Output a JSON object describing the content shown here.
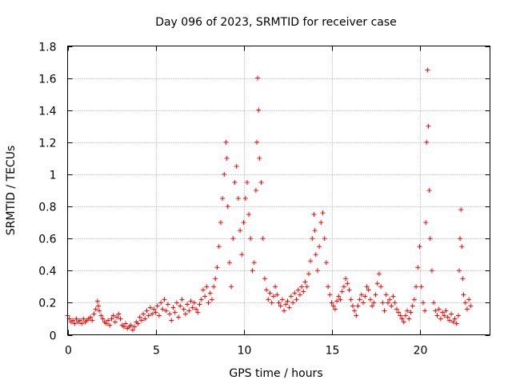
{
  "chart_data": {
    "type": "scatter",
    "title": "Day 096 of 2023, SRMTID for receiver case",
    "xlabel": "GPS time / hours",
    "ylabel": "SRMTID / TECUs",
    "xlim": [
      0,
      24
    ],
    "ylim": [
      0,
      1.8
    ],
    "xticks": [
      0,
      5,
      10,
      15,
      20
    ],
    "xtick_labels": [
      "0",
      "5",
      "10",
      "15",
      "20"
    ],
    "yticks": [
      0,
      0.2,
      0.4,
      0.6,
      0.8,
      1.0,
      1.2,
      1.4,
      1.6,
      1.8
    ],
    "ytick_labels": [
      "0",
      "0.2",
      "0.4",
      "0.6",
      "0.8",
      "1",
      "1.2",
      "1.4",
      "1.6",
      "1.8"
    ],
    "grid": true,
    "marker": "plus",
    "color": "#ff0000",
    "series": [
      {
        "name": "SRMTID",
        "points": [
          [
            0.0,
            0.12
          ],
          [
            0.1,
            0.1
          ],
          [
            0.2,
            0.08
          ],
          [
            0.3,
            0.09
          ],
          [
            0.4,
            0.07
          ],
          [
            0.5,
            0.1
          ],
          [
            0.6,
            0.08
          ],
          [
            0.7,
            0.09
          ],
          [
            0.8,
            0.07
          ],
          [
            0.9,
            0.1
          ],
          [
            1.0,
            0.08
          ],
          [
            1.1,
            0.09
          ],
          [
            1.2,
            0.1
          ],
          [
            1.3,
            0.11
          ],
          [
            1.4,
            0.09
          ],
          [
            1.5,
            0.13
          ],
          [
            1.6,
            0.16
          ],
          [
            1.7,
            0.21
          ],
          [
            1.75,
            0.18
          ],
          [
            1.8,
            0.15
          ],
          [
            1.9,
            0.12
          ],
          [
            2.0,
            0.1
          ],
          [
            2.1,
            0.08
          ],
          [
            2.2,
            0.07
          ],
          [
            2.3,
            0.09
          ],
          [
            2.4,
            0.06
          ],
          [
            2.5,
            0.1
          ],
          [
            2.6,
            0.12
          ],
          [
            2.7,
            0.08
          ],
          [
            2.8,
            0.11
          ],
          [
            2.9,
            0.13
          ],
          [
            3.0,
            0.1
          ],
          [
            3.1,
            0.06
          ],
          [
            3.2,
            0.05
          ],
          [
            3.3,
            0.07
          ],
          [
            3.4,
            0.04
          ],
          [
            3.5,
            0.05
          ],
          [
            3.6,
            0.06
          ],
          [
            3.7,
            0.03
          ],
          [
            3.8,
            0.05
          ],
          [
            3.9,
            0.08
          ],
          [
            4.0,
            0.07
          ],
          [
            4.1,
            0.11
          ],
          [
            4.2,
            0.09
          ],
          [
            4.3,
            0.13
          ],
          [
            4.4,
            0.1
          ],
          [
            4.5,
            0.15
          ],
          [
            4.6,
            0.12
          ],
          [
            4.7,
            0.17
          ],
          [
            4.8,
            0.13
          ],
          [
            4.9,
            0.16
          ],
          [
            5.0,
            0.14
          ],
          [
            5.1,
            0.18
          ],
          [
            5.2,
            0.12
          ],
          [
            5.3,
            0.2
          ],
          [
            5.4,
            0.16
          ],
          [
            5.5,
            0.22
          ],
          [
            5.6,
            0.15
          ],
          [
            5.7,
            0.19
          ],
          [
            5.8,
            0.13
          ],
          [
            5.9,
            0.09
          ],
          [
            6.0,
            0.17
          ],
          [
            6.1,
            0.14
          ],
          [
            6.2,
            0.2
          ],
          [
            6.3,
            0.11
          ],
          [
            6.4,
            0.18
          ],
          [
            6.5,
            0.22
          ],
          [
            6.6,
            0.16
          ],
          [
            6.7,
            0.13
          ],
          [
            6.8,
            0.19
          ],
          [
            6.9,
            0.15
          ],
          [
            7.0,
            0.21
          ],
          [
            7.1,
            0.17
          ],
          [
            7.2,
            0.2
          ],
          [
            7.3,
            0.16
          ],
          [
            7.4,
            0.14
          ],
          [
            7.5,
            0.19
          ],
          [
            7.6,
            0.22
          ],
          [
            7.7,
            0.28
          ],
          [
            7.8,
            0.24
          ],
          [
            7.9,
            0.3
          ],
          [
            8.0,
            0.2
          ],
          [
            8.1,
            0.26
          ],
          [
            8.2,
            0.22
          ],
          [
            8.3,
            0.3
          ],
          [
            8.4,
            0.35
          ],
          [
            8.5,
            0.42
          ],
          [
            8.6,
            0.55
          ],
          [
            8.7,
            0.7
          ],
          [
            8.8,
            0.85
          ],
          [
            8.9,
            1.0
          ],
          [
            9.0,
            1.2
          ],
          [
            9.05,
            1.1
          ],
          [
            9.1,
            0.8
          ],
          [
            9.2,
            0.45
          ],
          [
            9.3,
            0.3
          ],
          [
            9.4,
            0.6
          ],
          [
            9.5,
            0.95
          ],
          [
            9.6,
            1.05
          ],
          [
            9.7,
            0.85
          ],
          [
            9.8,
            0.65
          ],
          [
            9.9,
            0.5
          ],
          [
            10.0,
            0.7
          ],
          [
            10.1,
            0.85
          ],
          [
            10.2,
            0.95
          ],
          [
            10.3,
            0.75
          ],
          [
            10.4,
            0.6
          ],
          [
            10.5,
            0.4
          ],
          [
            10.6,
            0.45
          ],
          [
            10.7,
            0.9
          ],
          [
            10.75,
            1.2
          ],
          [
            10.8,
            1.6
          ],
          [
            10.85,
            1.4
          ],
          [
            10.9,
            1.1
          ],
          [
            11.0,
            0.95
          ],
          [
            11.1,
            0.6
          ],
          [
            11.2,
            0.35
          ],
          [
            11.3,
            0.28
          ],
          [
            11.4,
            0.22
          ],
          [
            11.5,
            0.26
          ],
          [
            11.6,
            0.2
          ],
          [
            11.7,
            0.24
          ],
          [
            11.8,
            0.3
          ],
          [
            11.9,
            0.25
          ],
          [
            12.0,
            0.2
          ],
          [
            12.1,
            0.18
          ],
          [
            12.2,
            0.22
          ],
          [
            12.3,
            0.15
          ],
          [
            12.4,
            0.19
          ],
          [
            12.5,
            0.21
          ],
          [
            12.6,
            0.17
          ],
          [
            12.7,
            0.24
          ],
          [
            12.8,
            0.2
          ],
          [
            12.9,
            0.26
          ],
          [
            13.0,
            0.22
          ],
          [
            13.1,
            0.28
          ],
          [
            13.2,
            0.25
          ],
          [
            13.3,
            0.3
          ],
          [
            13.4,
            0.27
          ],
          [
            13.5,
            0.33
          ],
          [
            13.6,
            0.3
          ],
          [
            13.7,
            0.38
          ],
          [
            13.8,
            0.46
          ],
          [
            13.9,
            0.6
          ],
          [
            14.0,
            0.75
          ],
          [
            14.05,
            0.65
          ],
          [
            14.1,
            0.5
          ],
          [
            14.2,
            0.4
          ],
          [
            14.3,
            0.55
          ],
          [
            14.4,
            0.7
          ],
          [
            14.5,
            0.76
          ],
          [
            14.6,
            0.6
          ],
          [
            14.7,
            0.45
          ],
          [
            14.8,
            0.3
          ],
          [
            14.9,
            0.25
          ],
          [
            15.0,
            0.2
          ],
          [
            15.1,
            0.18
          ],
          [
            15.2,
            0.16
          ],
          [
            15.3,
            0.21
          ],
          [
            15.4,
            0.24
          ],
          [
            15.5,
            0.22
          ],
          [
            15.6,
            0.27
          ],
          [
            15.7,
            0.3
          ],
          [
            15.8,
            0.35
          ],
          [
            15.9,
            0.32
          ],
          [
            16.0,
            0.28
          ],
          [
            16.1,
            0.22
          ],
          [
            16.2,
            0.18
          ],
          [
            16.3,
            0.15
          ],
          [
            16.4,
            0.12
          ],
          [
            16.5,
            0.18
          ],
          [
            16.6,
            0.22
          ],
          [
            16.7,
            0.25
          ],
          [
            16.8,
            0.2
          ],
          [
            16.9,
            0.24
          ],
          [
            17.0,
            0.3
          ],
          [
            17.1,
            0.28
          ],
          [
            17.2,
            0.22
          ],
          [
            17.3,
            0.18
          ],
          [
            17.4,
            0.2
          ],
          [
            17.5,
            0.25
          ],
          [
            17.6,
            0.32
          ],
          [
            17.7,
            0.38
          ],
          [
            17.8,
            0.3
          ],
          [
            17.9,
            0.2
          ],
          [
            18.0,
            0.15
          ],
          [
            18.1,
            0.25
          ],
          [
            18.2,
            0.2
          ],
          [
            18.3,
            0.22
          ],
          [
            18.4,
            0.18
          ],
          [
            18.5,
            0.24
          ],
          [
            18.6,
            0.2
          ],
          [
            18.7,
            0.16
          ],
          [
            18.8,
            0.14
          ],
          [
            18.9,
            0.12
          ],
          [
            19.0,
            0.1
          ],
          [
            19.1,
            0.08
          ],
          [
            19.2,
            0.12
          ],
          [
            19.3,
            0.15
          ],
          [
            19.4,
            0.1
          ],
          [
            19.5,
            0.14
          ],
          [
            19.6,
            0.18
          ],
          [
            19.7,
            0.22
          ],
          [
            19.8,
            0.3
          ],
          [
            19.9,
            0.42
          ],
          [
            20.0,
            0.55
          ],
          [
            20.1,
            0.3
          ],
          [
            20.2,
            0.2
          ],
          [
            20.3,
            0.15
          ],
          [
            20.35,
            0.7
          ],
          [
            20.4,
            1.2
          ],
          [
            20.45,
            1.65
          ],
          [
            20.5,
            1.3
          ],
          [
            20.55,
            0.9
          ],
          [
            20.6,
            0.6
          ],
          [
            20.7,
            0.4
          ],
          [
            20.8,
            0.2
          ],
          [
            20.9,
            0.15
          ],
          [
            21.0,
            0.12
          ],
          [
            21.1,
            0.16
          ],
          [
            21.2,
            0.1
          ],
          [
            21.3,
            0.14
          ],
          [
            21.4,
            0.12
          ],
          [
            21.5,
            0.15
          ],
          [
            21.6,
            0.11
          ],
          [
            21.7,
            0.09
          ],
          [
            21.8,
            0.13
          ],
          [
            21.9,
            0.08
          ],
          [
            22.0,
            0.1
          ],
          [
            22.1,
            0.07
          ],
          [
            22.2,
            0.12
          ],
          [
            22.25,
            0.4
          ],
          [
            22.3,
            0.6
          ],
          [
            22.35,
            0.78
          ],
          [
            22.4,
            0.55
          ],
          [
            22.45,
            0.35
          ],
          [
            22.5,
            0.25
          ],
          [
            22.6,
            0.2
          ],
          [
            22.7,
            0.16
          ],
          [
            22.8,
            0.22
          ],
          [
            22.9,
            0.18
          ]
        ]
      }
    ]
  }
}
